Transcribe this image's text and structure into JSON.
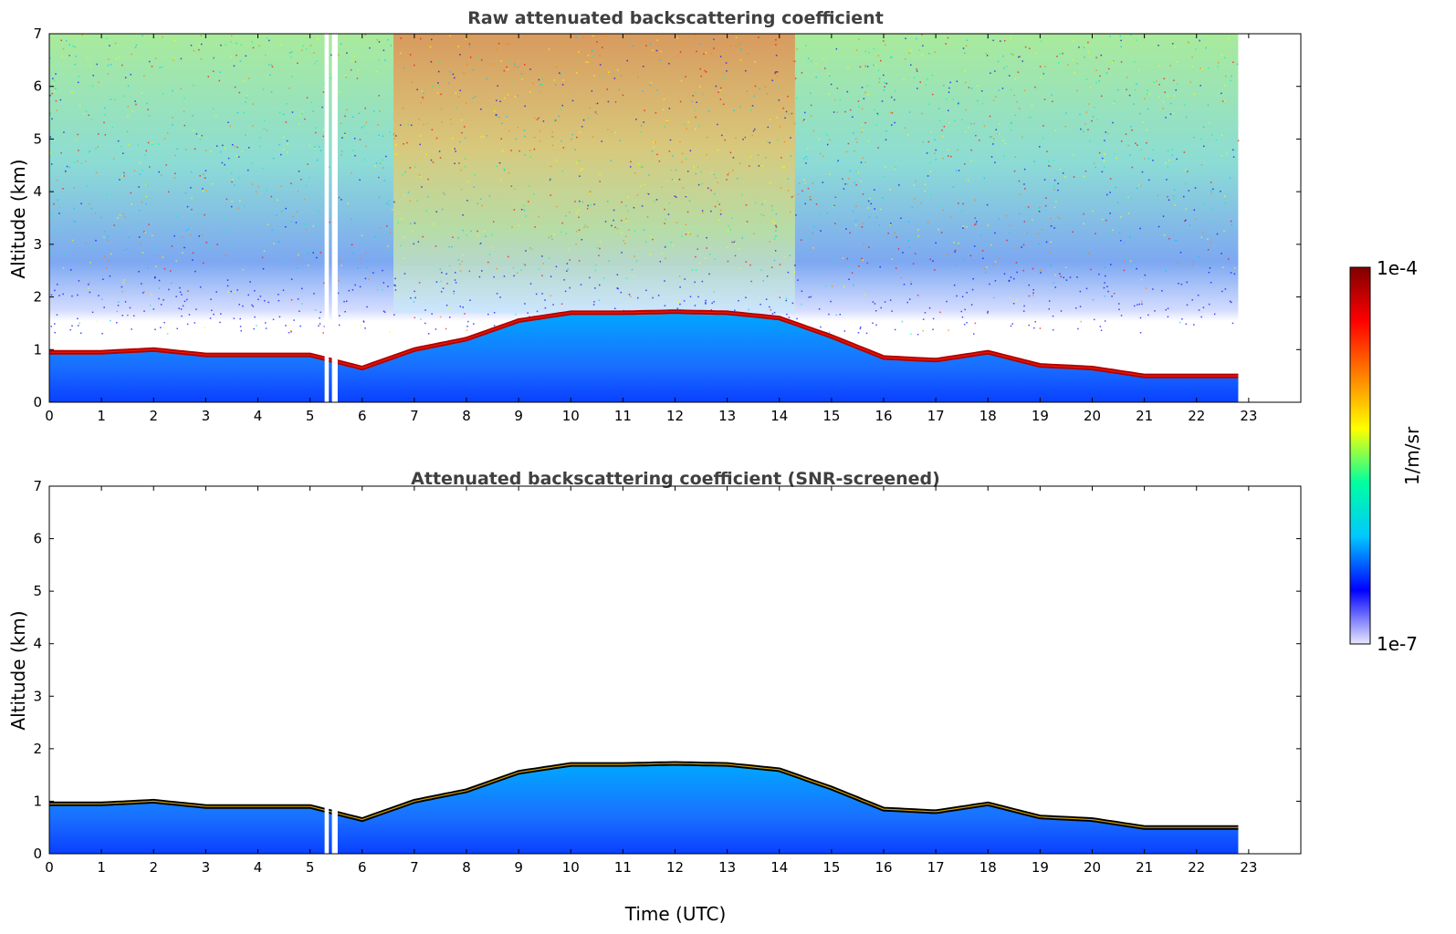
{
  "chart_data": [
    {
      "type": "heatmap",
      "title": "Raw attenuated backscattering coefficient",
      "xlabel": "",
      "ylabel": "Altitude (km)",
      "xlim": [
        0,
        24
      ],
      "ylim": [
        0,
        7
      ],
      "xticks": [
        "0",
        "1",
        "2",
        "3",
        "4",
        "5",
        "6",
        "7",
        "8",
        "9",
        "10",
        "11",
        "12",
        "13",
        "14",
        "15",
        "16",
        "17",
        "18",
        "19",
        "20",
        "21",
        "22",
        "23"
      ],
      "yticks": [
        "0",
        "1",
        "2",
        "3",
        "4",
        "5",
        "6",
        "7"
      ],
      "data_end_hour": 22.8,
      "gaps_hours": [
        [
          5.28,
          5.36
        ],
        [
          5.42,
          5.53
        ]
      ],
      "cloud_layer_top_km": [
        [
          0,
          0.95
        ],
        [
          1,
          0.95
        ],
        [
          2,
          1.0
        ],
        [
          3,
          0.9
        ],
        [
          4,
          0.9
        ],
        [
          5,
          0.9
        ],
        [
          6,
          0.65
        ],
        [
          7,
          1.0
        ],
        [
          8,
          1.2
        ],
        [
          9,
          1.55
        ],
        [
          10,
          1.7
        ],
        [
          11,
          1.7
        ],
        [
          12,
          1.72
        ],
        [
          13,
          1.7
        ],
        [
          14,
          1.6
        ],
        [
          15,
          1.25
        ],
        [
          16,
          0.85
        ],
        [
          17,
          0.8
        ],
        [
          18,
          0.95
        ],
        [
          19,
          0.7
        ],
        [
          20,
          0.65
        ],
        [
          21,
          0.5
        ],
        [
          22,
          0.5
        ],
        [
          22.8,
          0.5
        ]
      ]
    },
    {
      "type": "heatmap",
      "title": "Attenuated backscattering coefficient (SNR-screened)",
      "xlabel": "Time (UTC)",
      "ylabel": "Altitude (km)",
      "xlim": [
        0,
        24
      ],
      "ylim": [
        0,
        7
      ],
      "xticks": [
        "0",
        "1",
        "2",
        "3",
        "4",
        "5",
        "6",
        "7",
        "8",
        "9",
        "10",
        "11",
        "12",
        "13",
        "14",
        "15",
        "16",
        "17",
        "18",
        "19",
        "20",
        "21",
        "22",
        "23"
      ],
      "yticks": [
        "0",
        "1",
        "2",
        "3",
        "4",
        "5",
        "6",
        "7"
      ],
      "data_end_hour": 22.8,
      "gaps_hours": [
        [
          5.28,
          5.36
        ],
        [
          5.42,
          5.53
        ]
      ]
    }
  ],
  "colorbar": {
    "label": "1/m/sr",
    "max_label": "1e-4",
    "min_label": "1e-7",
    "colormap": [
      "#e8e8ff",
      "#0000ff",
      "#00c8ff",
      "#00ffa0",
      "#ffff00",
      "#ff8000",
      "#ff0000",
      "#800000"
    ]
  }
}
